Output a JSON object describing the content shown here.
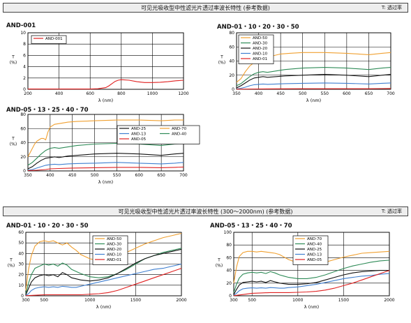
{
  "header1": {
    "title": "可见光吸收型中性滤光片透过率波长特性 (参考数据)",
    "note": "T: 透过率"
  },
  "header2": {
    "title": "可见光吸收型中性滤光片透过率波长特性 (300～2000nm) (参考数据)",
    "note": "T: 透过率"
  },
  "panels": {
    "p1": {
      "title": "AND-001"
    },
    "p2": {
      "title": "AND-01・10・20・30・50"
    },
    "p3": {
      "title": "AND-05・13・25・40・70"
    },
    "p4": {
      "title": "AND-01・10・20・30・50"
    },
    "p5": {
      "title": "AND-05・13・25・40・70"
    }
  },
  "colors": {
    "orange": "#f0a030",
    "green": "#2e8b57",
    "black": "#111111",
    "blue": "#3f7fd0",
    "red": "#e02020"
  },
  "chart_data": [
    {
      "id": "p1",
      "type": "line",
      "xlabel": "λ (nm)",
      "ylabel": "T\n(%)",
      "xlim": [
        200,
        1200
      ],
      "ylim": [
        0,
        10
      ],
      "xticks": [
        200,
        400,
        600,
        800,
        1000,
        1200
      ],
      "yticks": [
        0,
        2,
        4,
        6,
        8,
        10
      ],
      "grid": true,
      "legend": "top-left",
      "series": [
        {
          "name": "AND-001",
          "color": "red",
          "x": [
            200,
            300,
            400,
            500,
            600,
            650,
            700,
            720,
            740,
            760,
            780,
            800,
            850,
            900,
            950,
            1000,
            1050,
            1100,
            1150,
            1200
          ],
          "y": [
            0.05,
            0.05,
            0.05,
            0.05,
            0.05,
            0.1,
            0.3,
            0.6,
            1.0,
            1.4,
            1.6,
            1.7,
            1.6,
            1.35,
            1.2,
            1.2,
            1.25,
            1.35,
            1.5,
            1.6
          ]
        }
      ]
    },
    {
      "id": "p2",
      "type": "line",
      "xlabel": "λ (nm)",
      "ylabel": "T\n(%)",
      "xlim": [
        350,
        700
      ],
      "ylim": [
        0,
        80
      ],
      "xticks": [
        350,
        400,
        450,
        500,
        550,
        600,
        650,
        700
      ],
      "yticks": [
        0,
        20,
        40,
        60,
        80
      ],
      "grid": true,
      "legend": "top-left",
      "series": [
        {
          "name": "AND-50",
          "color": "orange",
          "x": [
            350,
            360,
            370,
            380,
            390,
            395,
            400,
            410,
            420,
            430,
            450,
            470,
            500,
            550,
            600,
            650,
            680,
            700
          ],
          "y": [
            10,
            15,
            25,
            33,
            38,
            42,
            45,
            46,
            45,
            47,
            50,
            51,
            52,
            52,
            51,
            49,
            51,
            52
          ]
        },
        {
          "name": "AND-30",
          "color": "green",
          "x": [
            350,
            360,
            370,
            380,
            390,
            400,
            410,
            420,
            440,
            460,
            500,
            550,
            600,
            650,
            680,
            700
          ],
          "y": [
            5,
            8,
            13,
            18,
            22,
            24,
            25,
            24,
            26,
            28,
            30,
            31,
            30,
            28,
            30,
            31
          ]
        },
        {
          "name": "AND-20",
          "color": "black",
          "x": [
            350,
            360,
            370,
            380,
            390,
            400,
            410,
            420,
            440,
            460,
            500,
            550,
            600,
            650,
            680,
            700
          ],
          "y": [
            2,
            5,
            9,
            13,
            16,
            17,
            18,
            17,
            18,
            19,
            20,
            21,
            20,
            18,
            20,
            21
          ]
        },
        {
          "name": "AND-10",
          "color": "blue",
          "x": [
            350,
            360,
            370,
            380,
            390,
            400,
            410,
            420,
            440,
            460,
            500,
            550,
            600,
            650,
            680,
            700
          ],
          "y": [
            0.5,
            1.5,
            3,
            5,
            6.5,
            7,
            7.5,
            7,
            7.5,
            8,
            8.5,
            9,
            8.5,
            7.5,
            8.5,
            9
          ]
        },
        {
          "name": "AND-01",
          "color": "red",
          "x": [
            350,
            400,
            450,
            500,
            550,
            600,
            650,
            680,
            700
          ],
          "y": [
            0.2,
            0.5,
            0.7,
            0.8,
            0.8,
            0.8,
            0.8,
            1.0,
            1.2
          ]
        }
      ]
    },
    {
      "id": "p3",
      "type": "line",
      "xlabel": "λ (nm)",
      "ylabel": "T\n(%)",
      "xlim": [
        350,
        700
      ],
      "ylim": [
        0,
        80
      ],
      "xticks": [
        350,
        400,
        450,
        500,
        550,
        600,
        650,
        700
      ],
      "yticks": [
        0,
        20,
        40,
        60,
        80
      ],
      "grid": true,
      "legend": "center-right",
      "series": [
        {
          "name": "AND-25",
          "color": "black",
          "x": [
            350,
            360,
            370,
            380,
            390,
            400,
            410,
            420,
            440,
            460,
            500,
            550,
            600,
            650,
            680,
            700
          ],
          "y": [
            3,
            6,
            11,
            15,
            18,
            19,
            20,
            19,
            21,
            22,
            24,
            25,
            24,
            22,
            24,
            25
          ]
        },
        {
          "name": "AND-13",
          "color": "blue",
          "x": [
            350,
            360,
            370,
            380,
            390,
            400,
            410,
            420,
            440,
            460,
            500,
            550,
            600,
            650,
            680,
            700
          ],
          "y": [
            1,
            2,
            4,
            6,
            8,
            9,
            9.5,
            9,
            10,
            10.5,
            11,
            12,
            11,
            10,
            11,
            12
          ]
        },
        {
          "name": "AND-05",
          "color": "red",
          "x": [
            350,
            370,
            390,
            400,
            420,
            450,
            500,
            550,
            600,
            650,
            680,
            700
          ],
          "y": [
            0.5,
            1,
            2,
            3,
            3.5,
            4,
            4.5,
            5,
            5,
            4.5,
            5,
            5.5
          ]
        },
        {
          "name": "AND-70",
          "color": "orange",
          "x": [
            350,
            355,
            360,
            365,
            370,
            375,
            380,
            385,
            390,
            395,
            400,
            410,
            420,
            440,
            460,
            500,
            550,
            600,
            650,
            680,
            700
          ],
          "y": [
            20,
            26,
            32,
            38,
            42,
            44,
            46,
            46,
            44,
            55,
            62,
            66,
            67,
            69,
            70,
            71,
            72,
            72,
            71,
            72,
            72
          ]
        },
        {
          "name": "AND-40",
          "color": "green",
          "x": [
            350,
            360,
            370,
            380,
            390,
            400,
            410,
            420,
            440,
            460,
            500,
            550,
            600,
            650,
            680,
            700
          ],
          "y": [
            8,
            12,
            18,
            24,
            29,
            32,
            33,
            32,
            34,
            36,
            38,
            39,
            38,
            36,
            38,
            39
          ]
        }
      ]
    },
    {
      "id": "p4",
      "type": "line",
      "xlabel": "λ (nm)",
      "ylabel": "T\n(%)",
      "xlim": [
        300,
        2000
      ],
      "ylim": [
        0,
        60
      ],
      "xticks": [
        300,
        500,
        1000,
        1500,
        2000
      ],
      "yticks": [
        0,
        10,
        20,
        30,
        40,
        50,
        60
      ],
      "grid": true,
      "legend": "top-center",
      "series": [
        {
          "name": "AND-50",
          "color": "orange",
          "x": [
            300,
            330,
            360,
            400,
            450,
            500,
            550,
            600,
            650,
            700,
            750,
            800,
            850,
            900,
            1000,
            1100,
            1200,
            1300,
            1400,
            1500,
            1600,
            1700,
            1800,
            1900,
            2000
          ],
          "y": [
            5,
            25,
            38,
            47,
            51,
            52,
            51,
            52,
            50,
            48,
            50,
            46,
            43,
            39,
            35,
            33,
            34,
            37,
            41,
            45,
            49,
            52,
            55,
            57,
            59
          ]
        },
        {
          "name": "AND-30",
          "color": "green",
          "x": [
            300,
            330,
            360,
            400,
            450,
            500,
            550,
            600,
            650,
            700,
            750,
            800,
            850,
            900,
            1000,
            1100,
            1200,
            1300,
            1400,
            1500,
            1600,
            1700,
            1800,
            1900,
            2000
          ],
          "y": [
            2,
            12,
            20,
            26,
            28,
            30,
            29,
            30,
            28,
            31,
            29,
            25,
            23,
            21,
            18,
            17,
            18,
            21,
            25,
            30,
            35,
            38,
            41,
            43,
            45
          ]
        },
        {
          "name": "AND-20",
          "color": "black",
          "x": [
            300,
            330,
            360,
            400,
            450,
            500,
            550,
            600,
            650,
            700,
            750,
            800,
            850,
            900,
            1000,
            1100,
            1200,
            1300,
            1400,
            1500,
            1600,
            1700,
            1800,
            1900,
            2000
          ],
          "y": [
            1,
            7,
            13,
            17,
            19,
            20,
            19,
            20,
            18,
            22,
            20,
            17,
            16,
            15,
            14,
            15,
            17,
            21,
            26,
            31,
            35,
            38,
            40,
            42,
            44
          ]
        },
        {
          "name": "AND-10",
          "color": "blue",
          "x": [
            300,
            330,
            360,
            400,
            450,
            500,
            550,
            600,
            650,
            700,
            750,
            800,
            850,
            900,
            1000,
            1100,
            1200,
            1300,
            1400,
            1500,
            1600,
            1700,
            1800,
            1900,
            2000
          ],
          "y": [
            0.3,
            2,
            5,
            7,
            8,
            8.5,
            8,
            8.5,
            8,
            9,
            8.5,
            8,
            8,
            9,
            11,
            13,
            15,
            17,
            19,
            21,
            23,
            25,
            26,
            28,
            30
          ]
        },
        {
          "name": "AND-01",
          "color": "red",
          "x": [
            300,
            400,
            500,
            600,
            700,
            800,
            900,
            1000,
            1100,
            1200,
            1300,
            1400,
            1500,
            1600,
            1700,
            1800,
            1900,
            2000
          ],
          "y": [
            0.1,
            0.5,
            1,
            1,
            1,
            1,
            1,
            1.5,
            2,
            3,
            5,
            8,
            11,
            14,
            17,
            20,
            23,
            26
          ]
        }
      ]
    },
    {
      "id": "p5",
      "type": "line",
      "xlabel": "λ (nm)",
      "ylabel": "T\n(%)",
      "xlim": [
        300,
        2000
      ],
      "ylim": [
        0,
        100
      ],
      "xticks": [
        300,
        500,
        1000,
        1500,
        2000
      ],
      "yticks": [
        0,
        20,
        40,
        60,
        80,
        100
      ],
      "grid": true,
      "legend": "top-center",
      "series": [
        {
          "name": "AND-70",
          "color": "orange",
          "x": [
            300,
            330,
            360,
            400,
            450,
            500,
            550,
            600,
            650,
            700,
            750,
            800,
            850,
            900,
            1000,
            1100,
            1200,
            1300,
            1400,
            1500,
            1600,
            1700,
            1800,
            1900,
            2000
          ],
          "y": [
            20,
            45,
            62,
            68,
            70,
            70,
            69,
            70,
            69,
            68,
            67,
            65,
            61,
            57,
            52,
            50,
            50,
            53,
            57,
            61,
            64,
            67,
            68,
            69,
            70
          ]
        },
        {
          "name": "AND-40",
          "color": "green",
          "x": [
            300,
            330,
            360,
            400,
            450,
            500,
            550,
            600,
            650,
            700,
            750,
            800,
            850,
            900,
            1000,
            1100,
            1200,
            1300,
            1400,
            1500,
            1600,
            1700,
            1800,
            1900,
            2000
          ],
          "y": [
            5,
            18,
            28,
            34,
            36,
            37,
            36,
            37,
            35,
            38,
            36,
            33,
            31,
            29,
            27,
            27,
            29,
            33,
            38,
            43,
            47,
            50,
            53,
            55,
            56
          ]
        },
        {
          "name": "AND-25",
          "color": "black",
          "x": [
            300,
            330,
            360,
            400,
            450,
            500,
            550,
            600,
            650,
            700,
            750,
            800,
            850,
            900,
            1000,
            1100,
            1200,
            1300,
            1400,
            1500,
            1600,
            1700,
            1800,
            1900,
            2000
          ],
          "y": [
            2,
            10,
            17,
            21,
            22,
            23,
            22,
            23,
            21,
            24,
            22,
            20,
            19,
            18,
            18,
            19,
            21,
            25,
            29,
            33,
            36,
            38,
            39,
            40,
            40
          ]
        },
        {
          "name": "AND-13",
          "color": "blue",
          "x": [
            300,
            330,
            360,
            400,
            450,
            500,
            550,
            600,
            650,
            700,
            750,
            800,
            850,
            900,
            1000,
            1100,
            1200,
            1300,
            1400,
            1500,
            1600,
            1700,
            1800,
            1900,
            2000
          ],
          "y": [
            0.5,
            4,
            8,
            11,
            12,
            12.5,
            12,
            12.5,
            12,
            13,
            12.5,
            12,
            12,
            13,
            14,
            16,
            18,
            21,
            24,
            27,
            29,
            31,
            32,
            34,
            35
          ]
        },
        {
          "name": "AND-05",
          "color": "red",
          "x": [
            300,
            400,
            500,
            600,
            700,
            800,
            900,
            1000,
            1100,
            1200,
            1300,
            1400,
            1500,
            1600,
            1700,
            1800,
            1900,
            2000
          ],
          "y": [
            0.2,
            2,
            4,
            4.5,
            5,
            5,
            5,
            5.5,
            6,
            7,
            9,
            12,
            16,
            20,
            25,
            30,
            35,
            40
          ]
        }
      ]
    }
  ]
}
